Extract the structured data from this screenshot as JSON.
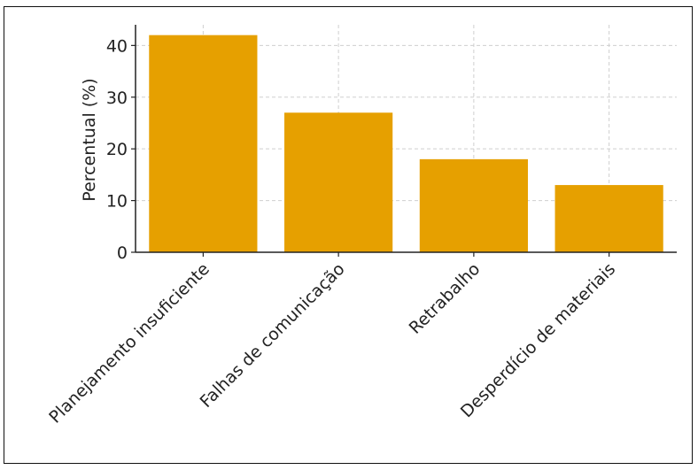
{
  "chart_data": {
    "type": "bar",
    "title": "",
    "xlabel": "",
    "ylabel": "Percentual (%)",
    "categories": [
      "Planejamento insuficiente",
      "Falhas de comunicação",
      "Retrabalho",
      "Desperdício de materiais"
    ],
    "values": [
      42,
      27,
      18,
      13
    ],
    "ylim": [
      0,
      44
    ],
    "yticks": [
      0,
      10,
      20,
      30,
      40
    ],
    "grid": true,
    "bar_color": "#E6A000"
  }
}
